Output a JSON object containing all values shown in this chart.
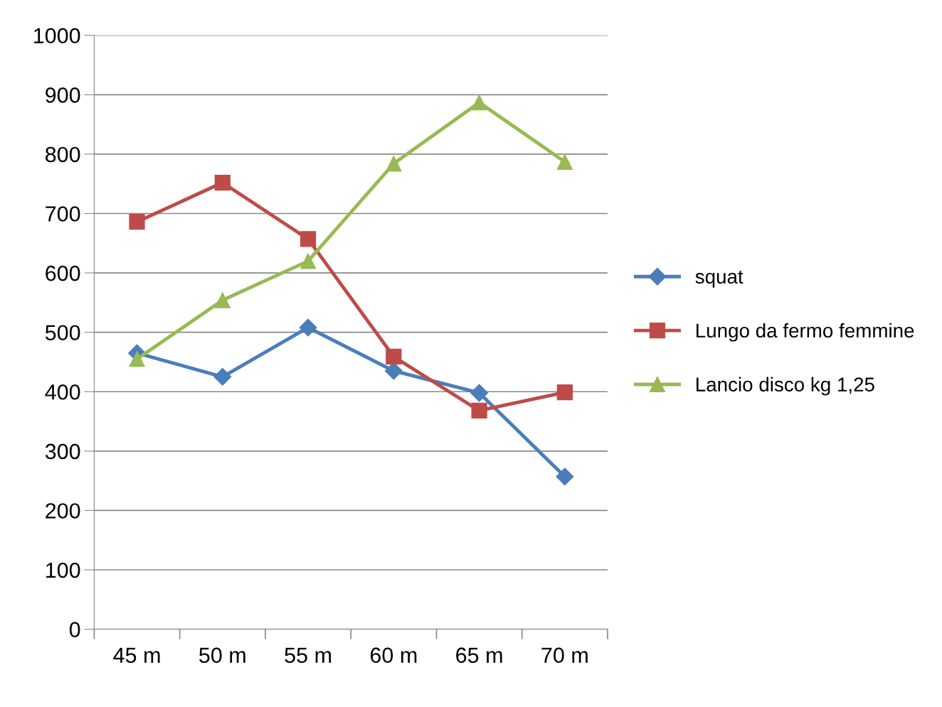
{
  "chart_data": {
    "type": "line",
    "categories": [
      "45 m",
      "50 m",
      "55 m",
      "60 m",
      "65 m",
      "70 m"
    ],
    "series": [
      {
        "name": "squat",
        "color": "#4a7ebb",
        "marker": "diamond",
        "values": [
          465,
          425,
          508,
          435,
          398,
          257
        ]
      },
      {
        "name": "Lungo da fermo femmine",
        "color": "#be4b48",
        "marker": "square",
        "values": [
          686,
          752,
          657,
          459,
          368,
          399
        ]
      },
      {
        "name": "Lancio disco kg 1,25",
        "color": "#98b954",
        "marker": "triangle",
        "values": [
          455,
          554,
          620,
          784,
          887,
          787
        ]
      }
    ],
    "ylim": [
      0,
      1000
    ],
    "yticks": [
      0,
      100,
      200,
      300,
      400,
      500,
      600,
      700,
      800,
      900,
      1000
    ],
    "grid": "y",
    "legend": "right",
    "line_style": "solid"
  }
}
